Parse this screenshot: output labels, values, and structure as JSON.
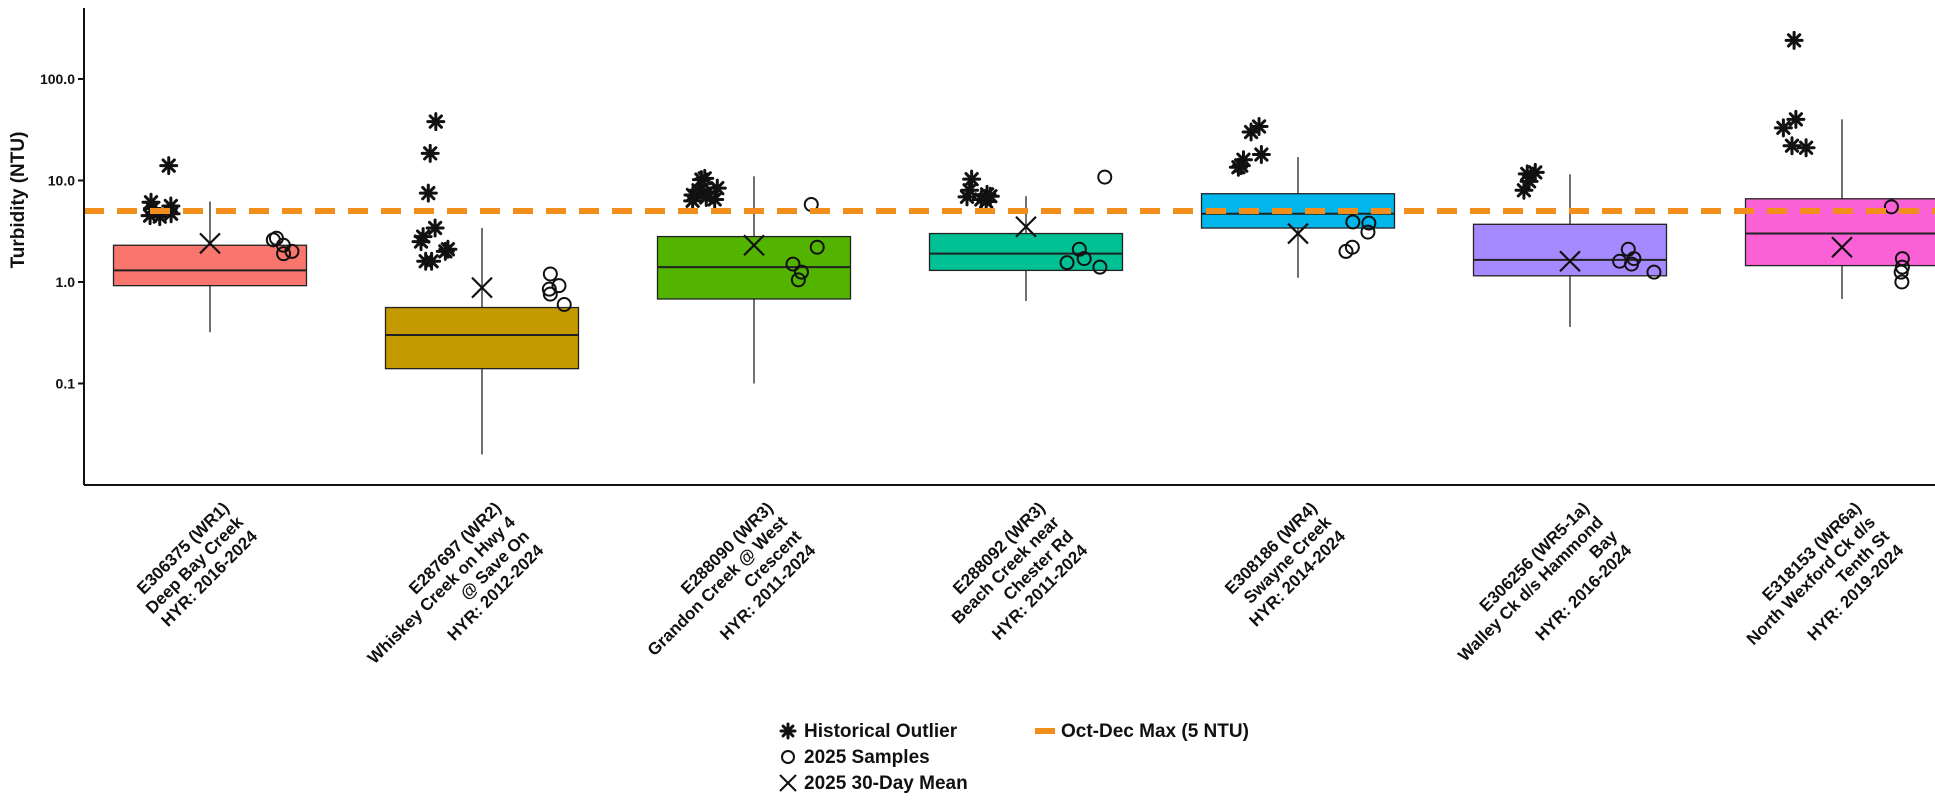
{
  "chart_data": {
    "type": "box",
    "ylabel": "Turbidity (NTU)",
    "y_scale": "log10",
    "ylim": [
      0.01,
      500
    ],
    "y_ticks": [
      0.1,
      1.0,
      10.0,
      100.0
    ],
    "y_tick_labels": [
      "0.1",
      "1.0",
      "10.0",
      "100.0"
    ],
    "reference_line": {
      "label": "Oct-Dec Max (5 NTU)",
      "value": 5,
      "color": "#f28e1c"
    },
    "legend": [
      {
        "symbol": "asterisk",
        "label": "Historical Outlier"
      },
      {
        "symbol": "circle",
        "label": "2025 Samples"
      },
      {
        "symbol": "cross",
        "label": "2025 30-Day Mean"
      },
      {
        "symbol": "dash",
        "label": "Oct-Dec Max (5 NTU)"
      }
    ],
    "legend_position": "bottom",
    "grid": false,
    "stations": [
      {
        "label_lines": [
          "E306375 (WR1)",
          "Deep Bay Creek",
          "HYR: 2016-2024"
        ],
        "color": "#f8766d",
        "box": {
          "whisker_low": 0.32,
          "q1": 0.92,
          "median": 1.3,
          "q3": 2.3,
          "whisker_high": 6.2
        },
        "mean_2025": 2.4,
        "samples_2025": [
          2.7,
          2.0,
          1.9,
          2.3,
          2.6
        ],
        "outliers": [
          14.0,
          4.5,
          4.4,
          4.7,
          5.3,
          5.6,
          6.1
        ]
      },
      {
        "label_lines": [
          "E287697 (WR2)",
          "Whiskey Creek on Hwy 4",
          "@ Save On",
          "HYR: 2012-2024"
        ],
        "color": "#c49a00",
        "box": {
          "whisker_low": 0.02,
          "q1": 0.14,
          "median": 0.3,
          "q3": 0.56,
          "whisker_high": 3.4
        },
        "mean_2025": 0.88,
        "samples_2025": [
          0.85,
          0.92,
          1.2,
          0.76,
          0.6
        ],
        "outliers": [
          38.0,
          18.5,
          7.5,
          3.4,
          2.8,
          2.5,
          2.0,
          1.6,
          1.6,
          2.1
        ]
      },
      {
        "label_lines": [
          "E288090 (WR3)",
          "Grandon Creek @ West",
          "Crescent",
          "HYR: 2011-2024"
        ],
        "color": "#53b400",
        "box": {
          "whisker_low": 0.1,
          "q1": 0.68,
          "median": 1.4,
          "q3": 2.8,
          "whisker_high": 11.0
        },
        "mean_2025": 2.3,
        "samples_2025": [
          5.8,
          1.25,
          1.05,
          1.5,
          2.2
        ],
        "outliers": [
          10.5,
          10.2,
          8.4,
          7.2,
          6.5,
          6.3,
          7.6,
          8.0,
          6.8
        ]
      },
      {
        "label_lines": [
          "E288092 (WR3)",
          "Beach Creek near",
          "Chester Rd",
          "HYR: 2011-2024"
        ],
        "color": "#00c094",
        "box": {
          "whisker_low": 0.65,
          "q1": 1.3,
          "median": 1.9,
          "q3": 3.0,
          "whisker_high": 7.0
        },
        "mean_2025": 3.5,
        "samples_2025": [
          10.8,
          1.4,
          1.55,
          1.7,
          2.1
        ],
        "outliers": [
          10.3,
          7.0,
          6.5,
          6.9,
          8.0,
          7.3,
          6.2
        ]
      },
      {
        "label_lines": [
          "E308186 (WR4)",
          "Swayne Creek",
          "HYR: 2014-2024"
        ],
        "color": "#00b6eb",
        "box": {
          "whisker_low": 1.1,
          "q1": 3.4,
          "median": 4.7,
          "q3": 7.4,
          "whisker_high": 17.0
        },
        "mean_2025": 3.0,
        "samples_2025": [
          2.2,
          3.1,
          2.0,
          3.9,
          3.8
        ],
        "outliers": [
          34.0,
          30.0,
          18.0,
          16.0,
          14.0,
          13.5
        ]
      },
      {
        "label_lines": [
          "E306256 (WR5-1a)",
          "Walley Ck d/s Hammond",
          "Bay",
          "HYR: 2016-2024"
        ],
        "color": "#a58aff",
        "box": {
          "whisker_low": 0.36,
          "q1": 1.15,
          "median": 1.65,
          "q3": 3.7,
          "whisker_high": 11.5
        },
        "mean_2025": 1.6,
        "samples_2025": [
          2.1,
          1.25,
          1.5,
          1.6,
          1.7
        ],
        "outliers": [
          9.8,
          8.0,
          11.6,
          12.0
        ]
      },
      {
        "label_lines": [
          "E318153 (WR6a)",
          "North Wexford Ck d/s",
          "Tenth St",
          "HYR: 2019-2024"
        ],
        "color": "#fb61d7",
        "box": {
          "whisker_low": 0.68,
          "q1": 1.45,
          "median": 3.0,
          "q3": 6.6,
          "whisker_high": 40.0
        },
        "mean_2025": 2.2,
        "samples_2025": [
          5.5,
          1.0,
          1.25,
          1.7,
          1.4
        ],
        "outliers": [
          240.0,
          40.0,
          33.0,
          22.0,
          21.0
        ]
      }
    ]
  }
}
